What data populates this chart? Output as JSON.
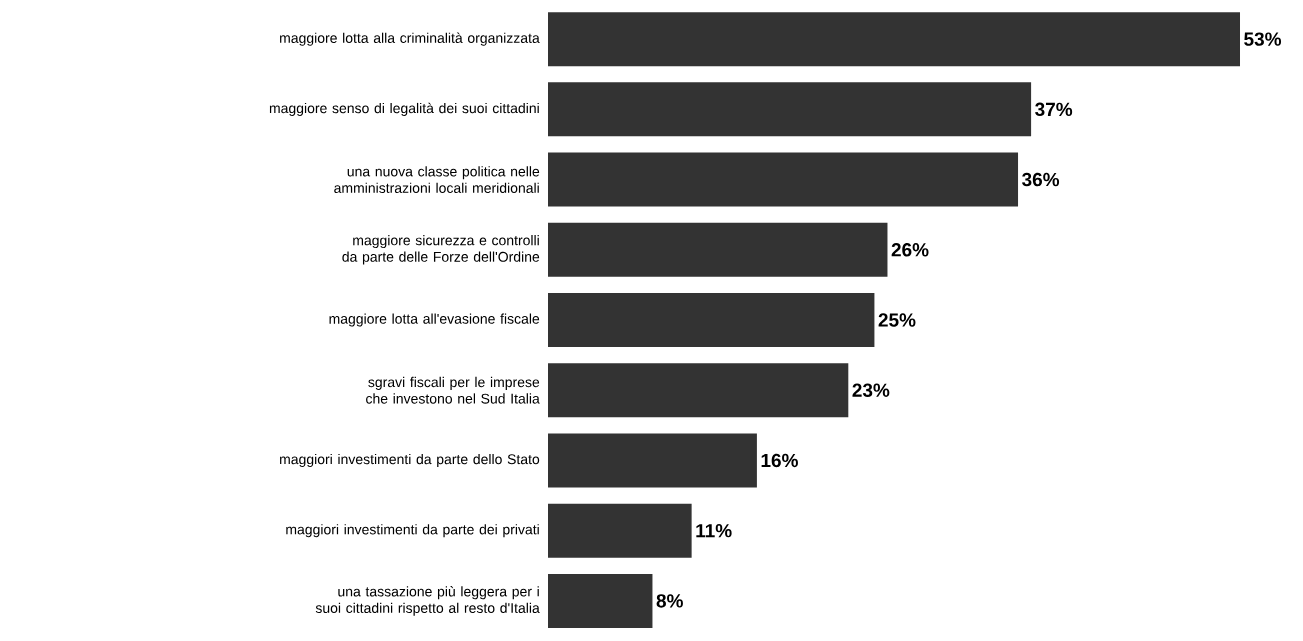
{
  "chart_data": {
    "type": "bar",
    "orientation": "horizontal",
    "color": "#333333",
    "categories": [
      "maggiore lotta alla criminalità organizzata",
      "maggiore senso di legalità dei suoi cittadini",
      "una nuova classe politica nelle amministrazioni locali meridionali",
      "maggiore sicurezza e controlli da parte delle Forze dell'Ordine",
      "maggiore lotta all'evasione fiscale",
      "sgravi fiscali per le imprese che investono nel Sud Italia",
      "maggiori investimenti da parte dello Stato",
      "maggiori investimenti da parte dei privati",
      "una tassazione più leggera per i suoi cittadini rispetto al resto d'Italia"
    ],
    "values": [
      53,
      37,
      36,
      26,
      25,
      23,
      16,
      11,
      8
    ],
    "value_labels": [
      "53%",
      "37%",
      "36%",
      "26%",
      "25%",
      "23%",
      "16%",
      "11%",
      "8%"
    ]
  }
}
